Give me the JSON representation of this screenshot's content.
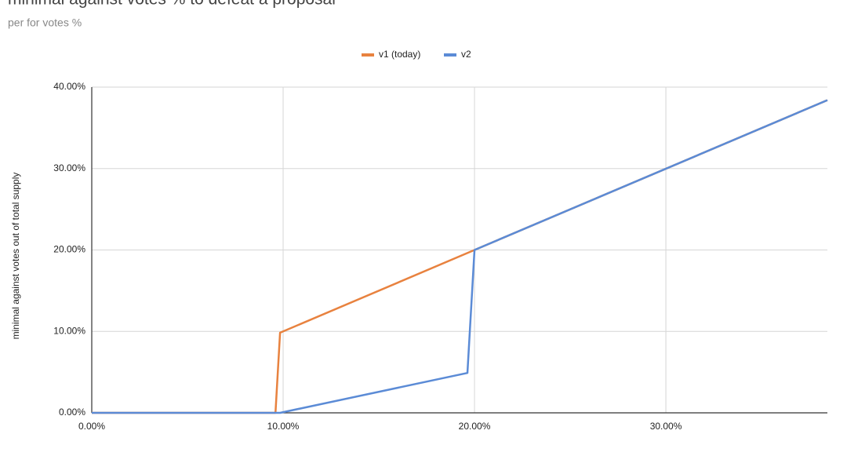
{
  "chart_data": {
    "type": "line",
    "title": "minimal against votes % to defeat a proposal",
    "subtitle": "per for votes %",
    "y_label": "minimal against votes out of total supply",
    "legend": "top",
    "grid": true,
    "xlim": [
      0,
      38.44
    ],
    "ylim": [
      0,
      40
    ],
    "xticks": [
      {
        "value": 0,
        "label": "0.00%"
      },
      {
        "value": 10,
        "label": "10.00%"
      },
      {
        "value": 20,
        "label": "20.00%"
      },
      {
        "value": 30,
        "label": "30.00%"
      }
    ],
    "yticks": [
      {
        "value": 0,
        "label": "0.00%"
      },
      {
        "value": 10,
        "label": "10.00%"
      },
      {
        "value": 20,
        "label": "20.00%"
      },
      {
        "value": 30,
        "label": "30.00%"
      },
      {
        "value": 40,
        "label": "40.00%"
      }
    ],
    "series": [
      {
        "name": "v1 (today)",
        "color": "#e8823f",
        "x": [
          0,
          9.6,
          9.84,
          20,
          38.44
        ],
        "values": [
          0,
          0,
          9.84,
          20,
          38.4
        ]
      },
      {
        "name": "v2",
        "color": "#5b8bd6",
        "x": [
          0,
          9.84,
          19.63,
          20,
          38.44
        ],
        "values": [
          0,
          0,
          4.9,
          20,
          38.4
        ]
      }
    ]
  }
}
